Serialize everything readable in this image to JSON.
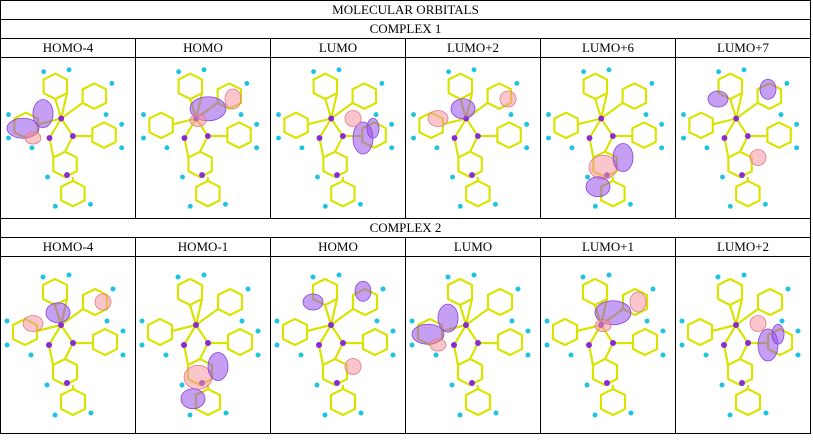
{
  "title": "MOLECULAR ORBITALS",
  "sections": [
    {
      "title": "COMPLEX 1",
      "orbitals": [
        "HOMO-4",
        "HOMO",
        "LUMO",
        "LUMO+2",
        "LUMO+6",
        "LUMO+7"
      ]
    },
    {
      "title": "COMPLEX 2",
      "orbitals": [
        "HOMO-4",
        "HOMO-1",
        "HOMO",
        "LUMO",
        "LUMO+1",
        "LUMO+2"
      ]
    }
  ]
}
